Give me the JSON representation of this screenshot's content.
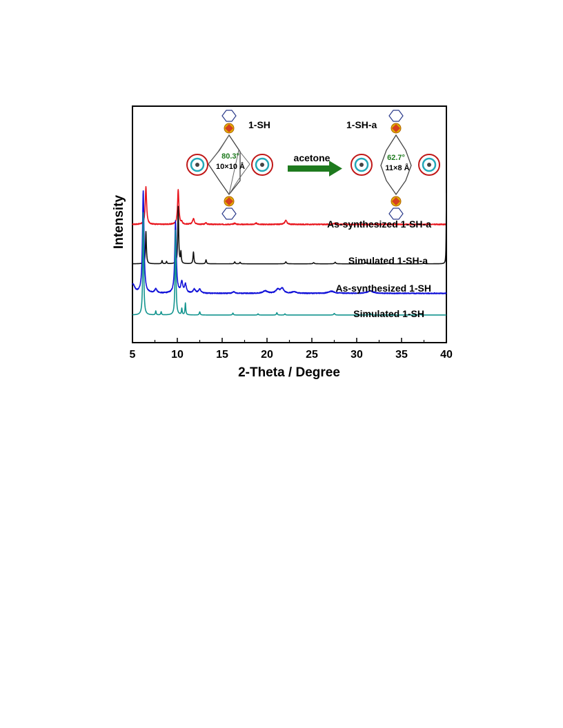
{
  "chart_data": {
    "type": "line",
    "title": "",
    "xlabel": "2-Theta / Degree",
    "ylabel": "Intensity",
    "xlim": [
      5,
      40
    ],
    "xticks": [
      5,
      10,
      15,
      20,
      25,
      30,
      35,
      40
    ],
    "grid": false,
    "legend": "inline labels above each trace",
    "series": [
      {
        "name": "As-synthesized 1-SH-a",
        "color": "#e8141c",
        "baseline": 3.0,
        "noise": 0.012,
        "peaks": [
          {
            "x": 6.5,
            "h": 0.95,
            "w": 0.09
          },
          {
            "x": 10.1,
            "h": 0.88,
            "w": 0.09
          },
          {
            "x": 10.5,
            "h": 0.05,
            "w": 0.08
          },
          {
            "x": 11.8,
            "h": 0.15,
            "w": 0.12
          },
          {
            "x": 13.2,
            "h": 0.04,
            "w": 0.1
          },
          {
            "x": 16.4,
            "h": 0.03,
            "w": 0.12
          },
          {
            "x": 18.8,
            "h": 0.03,
            "w": 0.12
          },
          {
            "x": 22.1,
            "h": 0.1,
            "w": 0.14
          },
          {
            "x": 27.6,
            "h": 0.03,
            "w": 0.15
          }
        ]
      },
      {
        "name": "Simulated 1-SH-a",
        "color": "#111111",
        "baseline": 2.0,
        "noise": 0.0,
        "peaks": [
          {
            "x": 6.5,
            "h": 0.82,
            "w": 0.06
          },
          {
            "x": 8.3,
            "h": 0.08,
            "w": 0.05
          },
          {
            "x": 8.8,
            "h": 0.06,
            "w": 0.05
          },
          {
            "x": 10.1,
            "h": 1.45,
            "w": 0.06
          },
          {
            "x": 10.4,
            "h": 0.28,
            "w": 0.05
          },
          {
            "x": 11.8,
            "h": 0.3,
            "w": 0.06
          },
          {
            "x": 13.2,
            "h": 0.1,
            "w": 0.06
          },
          {
            "x": 16.4,
            "h": 0.05,
            "w": 0.06
          },
          {
            "x": 17.0,
            "h": 0.04,
            "w": 0.06
          },
          {
            "x": 22.1,
            "h": 0.05,
            "w": 0.08
          },
          {
            "x": 25.2,
            "h": 0.03,
            "w": 0.08
          },
          {
            "x": 27.6,
            "h": 0.04,
            "w": 0.08
          },
          {
            "x": 31.0,
            "h": 0.03,
            "w": 0.08
          },
          {
            "x": 33.5,
            "h": 0.02,
            "w": 0.08
          },
          {
            "x": 37.5,
            "h": 0.02,
            "w": 0.08
          },
          {
            "x": 40.0,
            "h": 1.8,
            "w": 0.03
          }
        ]
      },
      {
        "name": "As-synthesized 1-SH",
        "color": "#1010d8",
        "baseline": 1.25,
        "noise": 0.012,
        "peaks": [
          {
            "x": 5.05,
            "h": 0.22,
            "w": 0.25
          },
          {
            "x": 6.2,
            "h": 2.6,
            "w": 0.1
          },
          {
            "x": 7.6,
            "h": 0.1,
            "w": 0.15
          },
          {
            "x": 9.8,
            "h": 1.82,
            "w": 0.1
          },
          {
            "x": 10.5,
            "h": 0.28,
            "w": 0.12
          },
          {
            "x": 10.9,
            "h": 0.22,
            "w": 0.12
          },
          {
            "x": 11.9,
            "h": 0.1,
            "w": 0.15
          },
          {
            "x": 12.5,
            "h": 0.1,
            "w": 0.15
          },
          {
            "x": 16.3,
            "h": 0.04,
            "w": 0.15
          },
          {
            "x": 19.8,
            "h": 0.06,
            "w": 0.3
          },
          {
            "x": 21.2,
            "h": 0.1,
            "w": 0.25
          },
          {
            "x": 21.7,
            "h": 0.12,
            "w": 0.2
          },
          {
            "x": 23.0,
            "h": 0.04,
            "w": 0.25
          },
          {
            "x": 27.2,
            "h": 0.05,
            "w": 0.4
          },
          {
            "x": 31.5,
            "h": 0.06,
            "w": 0.4
          }
        ]
      },
      {
        "name": "Simulated 1-SH",
        "color": "#12948e",
        "baseline": 0.7,
        "noise": 0.0,
        "peaks": [
          {
            "x": 6.2,
            "h": 2.6,
            "w": 0.06
          },
          {
            "x": 7.6,
            "h": 0.1,
            "w": 0.05
          },
          {
            "x": 8.2,
            "h": 0.08,
            "w": 0.05
          },
          {
            "x": 9.8,
            "h": 2.15,
            "w": 0.06
          },
          {
            "x": 10.5,
            "h": 0.16,
            "w": 0.05
          },
          {
            "x": 10.9,
            "h": 0.3,
            "w": 0.05
          },
          {
            "x": 12.5,
            "h": 0.08,
            "w": 0.06
          },
          {
            "x": 16.2,
            "h": 0.05,
            "w": 0.06
          },
          {
            "x": 19.0,
            "h": 0.03,
            "w": 0.06
          },
          {
            "x": 21.1,
            "h": 0.06,
            "w": 0.06
          },
          {
            "x": 22.0,
            "h": 0.03,
            "w": 0.06
          },
          {
            "x": 27.5,
            "h": 0.04,
            "w": 0.08
          },
          {
            "x": 31.5,
            "h": 0.04,
            "w": 0.08
          },
          {
            "x": 37.0,
            "h": 0.03,
            "w": 0.08
          }
        ]
      }
    ],
    "inset": {
      "left_label": "1-SH",
      "right_label": "1-SH-a",
      "left_angle": "80.3°",
      "left_dims": "10×10 Å",
      "right_angle": "62.7°",
      "right_dims": "11×8 Å",
      "arrow_label": "acetone",
      "arrow_color": "#1e7a1e"
    }
  }
}
